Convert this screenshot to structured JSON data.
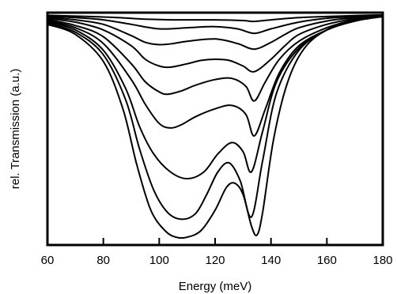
{
  "chart_data": {
    "type": "line",
    "xlabel": "Energy (meV)",
    "ylabel": "rel. Transmission (a.u.)",
    "xlim": [
      60,
      180
    ],
    "ylim": [
      0,
      1
    ],
    "x_ticks": [
      "60",
      "80",
      "100",
      "120",
      "140",
      "160",
      "180"
    ],
    "y_ticks": [],
    "grid": false,
    "legend": "none",
    "line_color": "#000000",
    "series": [
      {
        "x": [
          60,
          75,
          85,
          95,
          105,
          120,
          130,
          134,
          140,
          150,
          160,
          170,
          180
        ],
        "y": [
          0.995,
          0.99,
          0.985,
          0.978,
          0.975,
          0.975,
          0.972,
          0.968,
          0.975,
          0.985,
          0.99,
          0.994,
          0.997
        ]
      },
      {
        "x": [
          60,
          70,
          80,
          90,
          100,
          110,
          120,
          128,
          134,
          140,
          150,
          160,
          170,
          180
        ],
        "y": [
          0.99,
          0.985,
          0.975,
          0.955,
          0.935,
          0.94,
          0.945,
          0.935,
          0.915,
          0.935,
          0.965,
          0.982,
          0.99,
          0.995
        ]
      },
      {
        "x": [
          60,
          70,
          80,
          90,
          95,
          100,
          105,
          110,
          120,
          128,
          134,
          140,
          145,
          150,
          160,
          170,
          180
        ],
        "y": [
          0.985,
          0.975,
          0.955,
          0.905,
          0.875,
          0.865,
          0.87,
          0.88,
          0.89,
          0.87,
          0.845,
          0.875,
          0.91,
          0.94,
          0.97,
          0.985,
          0.993
        ]
      },
      {
        "x": [
          60,
          70,
          80,
          90,
          95,
          100,
          104,
          110,
          115,
          120,
          125,
          130,
          134,
          140,
          145,
          150,
          160,
          170,
          180
        ],
        "y": [
          0.98,
          0.965,
          0.93,
          0.86,
          0.8,
          0.77,
          0.765,
          0.78,
          0.795,
          0.8,
          0.795,
          0.77,
          0.745,
          0.8,
          0.86,
          0.91,
          0.955,
          0.98,
          0.99
        ]
      },
      {
        "x": [
          60,
          70,
          80,
          90,
          95,
          100,
          103,
          108,
          113,
          120,
          126,
          131,
          134,
          138,
          143,
          150,
          160,
          170,
          180
        ],
        "y": [
          0.975,
          0.95,
          0.9,
          0.78,
          0.7,
          0.655,
          0.645,
          0.66,
          0.685,
          0.71,
          0.715,
          0.68,
          0.615,
          0.7,
          0.8,
          0.88,
          0.94,
          0.975,
          0.99
        ]
      },
      {
        "x": [
          60,
          70,
          80,
          90,
          95,
          100,
          104,
          108,
          113,
          120,
          126,
          131,
          134,
          138,
          143,
          150,
          160,
          170,
          180
        ],
        "y": [
          0.97,
          0.94,
          0.87,
          0.71,
          0.6,
          0.515,
          0.495,
          0.51,
          0.545,
          0.58,
          0.595,
          0.555,
          0.46,
          0.58,
          0.74,
          0.86,
          0.93,
          0.97,
          0.99
        ]
      },
      {
        "x": [
          60,
          70,
          80,
          88,
          93,
          98,
          104,
          110,
          116,
          121,
          126,
          130,
          133,
          137,
          142,
          150,
          160,
          170,
          180
        ],
        "y": [
          0.965,
          0.93,
          0.84,
          0.67,
          0.5,
          0.38,
          0.3,
          0.27,
          0.3,
          0.38,
          0.43,
          0.39,
          0.3,
          0.48,
          0.7,
          0.85,
          0.93,
          0.97,
          0.99
        ]
      },
      {
        "x": [
          60,
          70,
          80,
          88,
          93,
          98,
          103,
          108,
          113,
          117,
          121,
          125,
          129,
          133,
          137,
          142,
          150,
          160,
          170,
          180
        ],
        "y": [
          0.96,
          0.92,
          0.82,
          0.62,
          0.4,
          0.22,
          0.12,
          0.09,
          0.115,
          0.2,
          0.3,
          0.34,
          0.26,
          0.1,
          0.35,
          0.65,
          0.84,
          0.93,
          0.97,
          0.99
        ]
      },
      {
        "x": [
          60,
          70,
          80,
          87,
          92,
          97,
          102,
          106,
          110,
          115,
          120,
          124,
          127,
          130,
          133,
          135,
          137,
          141,
          146,
          152,
          160,
          170,
          180
        ],
        "y": [
          0.955,
          0.91,
          0.79,
          0.58,
          0.33,
          0.13,
          0.04,
          0.01,
          0.01,
          0.04,
          0.13,
          0.23,
          0.25,
          0.2,
          0.06,
          0.02,
          0.12,
          0.45,
          0.7,
          0.85,
          0.93,
          0.97,
          0.99
        ]
      }
    ]
  }
}
